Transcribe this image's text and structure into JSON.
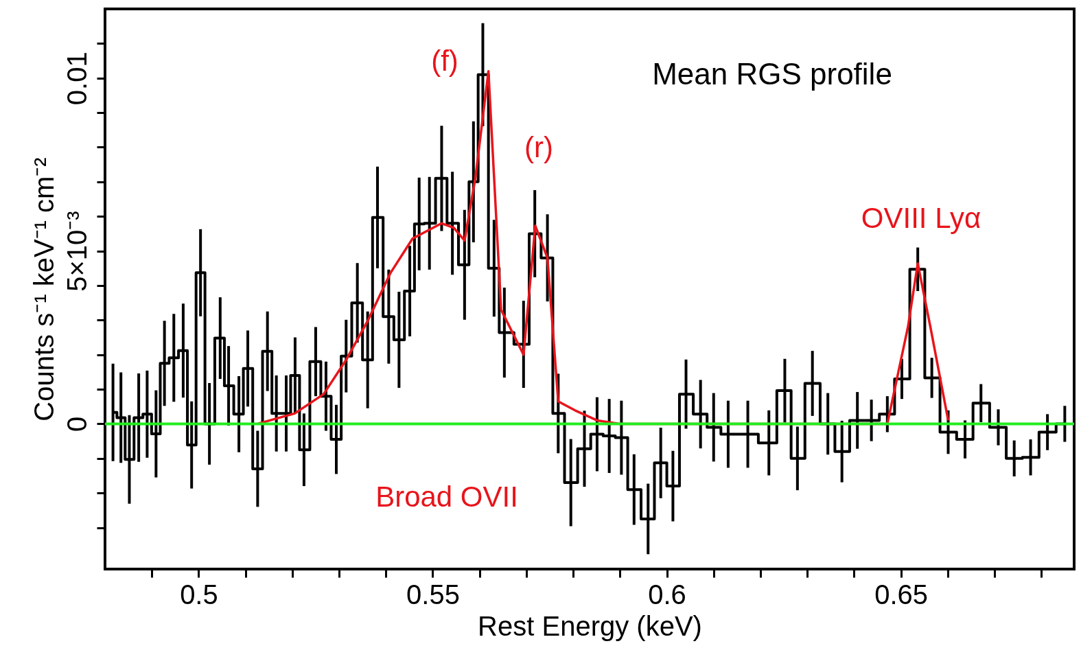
{
  "chart_data": {
    "type": "step",
    "xlabel": "Rest Energy (keV)",
    "ylabel": "Counts s⁻¹ keV⁻¹ cm⁻²",
    "xlim": [
      0.48,
      0.687
    ],
    "ylim": [
      -0.0042,
      0.012
    ],
    "xticks": [
      {
        "value": 0.49,
        "label": null
      },
      0.5,
      {
        "value": 0.51,
        "label": null
      },
      {
        "value": 0.52,
        "label": null
      },
      {
        "value": 0.53,
        "label": null
      },
      {
        "value": 0.54,
        "label": null
      },
      0.55,
      {
        "value": 0.56,
        "label": null
      },
      {
        "value": 0.57,
        "label": null
      },
      {
        "value": 0.58,
        "label": null
      },
      {
        "value": 0.59,
        "label": null
      },
      0.6,
      {
        "value": 0.61,
        "label": null
      },
      {
        "value": 0.62,
        "label": null
      },
      {
        "value": 0.63,
        "label": null
      },
      {
        "value": 0.64,
        "label": null
      },
      0.65,
      {
        "value": 0.66,
        "label": null
      },
      {
        "value": 0.67,
        "label": null
      },
      {
        "value": 0.68,
        "label": null
      }
    ],
    "yticks": [
      {
        "value": -0.003,
        "label": null
      },
      {
        "value": -0.002,
        "label": null
      },
      {
        "value": -0.001,
        "label": null
      },
      0,
      {
        "value": 0.001,
        "label": null
      },
      {
        "value": 0.002,
        "label": null
      },
      {
        "value": 0.003,
        "label": null
      },
      {
        "value": 0.004,
        "label": null
      },
      {
        "value": 0.005,
        "label": "5×10⁻³"
      },
      {
        "value": 0.006,
        "label": null
      },
      {
        "value": 0.007,
        "label": null
      },
      {
        "value": 0.008,
        "label": null
      },
      {
        "value": 0.009,
        "label": null
      },
      0.01,
      {
        "value": 0.011,
        "label": null
      }
    ],
    "marker": "none",
    "line_style": "solid",
    "series": [
      {
        "color": "#000000",
        "x": [
          0.4817,
          0.4834,
          0.4852,
          0.4872,
          0.489,
          0.4909,
          0.4927,
          0.4947,
          0.4967,
          0.4985,
          0.5004,
          0.5023,
          0.5046,
          0.5064,
          0.5086,
          0.5105,
          0.5126,
          0.5147,
          0.5166,
          0.5187,
          0.5206,
          0.5225,
          0.525,
          0.5272,
          0.5294,
          0.5315,
          0.5339,
          0.5361,
          0.5382,
          0.5406,
          0.5428,
          0.5451,
          0.5471,
          0.5493,
          0.5519,
          0.5542,
          0.5568,
          0.5587,
          0.5607,
          0.5631,
          0.5653,
          0.5694,
          0.5718,
          0.5745,
          0.5768,
          0.5795,
          0.5824,
          0.5851,
          0.5877,
          0.5903,
          0.593,
          0.596,
          0.5987,
          0.6013,
          0.6041,
          0.6072,
          0.61,
          0.6131,
          0.6173,
          0.6218,
          0.6252,
          0.6279,
          0.6311,
          0.6344,
          0.6374,
          0.6407,
          0.6437,
          0.6471,
          0.6502,
          0.6536,
          0.6566,
          0.6601,
          0.6637,
          0.6671,
          0.6708,
          0.6742,
          0.6777,
          0.6813,
          0.685
        ],
        "values": [
          0.00033,
          0.00018,
          -0.00103,
          0.00018,
          0.00028,
          -0.00029,
          0.00175,
          0.00191,
          0.00212,
          -0.00061,
          0.00437,
          0.0,
          0.00248,
          0.0011,
          0.00028,
          0.0016,
          -0.0013,
          0.0021,
          0.0003,
          0.0003,
          0.0014,
          -0.00075,
          0.0018,
          0.0008,
          -0.00045,
          0.00196,
          0.0035,
          0.00185,
          0.00597,
          0.0031,
          0.00243,
          0.00384,
          0.00578,
          0.0058,
          0.0071,
          0.0058,
          0.0046,
          0.007,
          0.0101,
          0.0045,
          0.00264,
          0.0023,
          0.0055,
          0.0048,
          0.0003,
          -0.0017,
          -0.00072,
          -0.0003,
          -0.00035,
          -0.0004,
          -0.0019,
          -0.00275,
          -0.00113,
          -0.0018,
          0.00086,
          0.00028,
          -0.0001,
          -0.0003,
          -0.0003,
          -0.00055,
          0.00096,
          -0.001,
          0.00117,
          0.0,
          -0.0008,
          0.0001,
          0.0001,
          0.00028,
          0.0013,
          0.00447,
          0.00133,
          -0.00024,
          -0.00045,
          0.0006,
          -0.0001,
          -0.001,
          -0.00097,
          -0.00024,
          0.0
        ],
        "errors": [
          0.00141,
          0.00131,
          0.00128,
          0.00128,
          0.00126,
          0.00126,
          0.00123,
          0.00127,
          0.00136,
          0.00126,
          0.00126,
          0.00118,
          0.00118,
          0.00115,
          0.0011,
          0.0011,
          0.0011,
          0.00115,
          0.0011,
          0.0011,
          0.0011,
          0.00105,
          0.001,
          0.001,
          0.001,
          0.00105,
          0.00115,
          0.0014,
          0.00147,
          0.00136,
          0.00139,
          0.00131,
          0.00134,
          0.00134,
          0.00152,
          0.00149,
          0.00159,
          0.00175,
          0.00149,
          0.0014,
          0.0013,
          0.00126,
          0.00126,
          0.00126,
          0.00115,
          0.00126,
          0.0011,
          0.00107,
          0.00107,
          0.00107,
          0.00102,
          0.00102,
          0.00102,
          0.00102,
          0.001,
          0.00099,
          0.00099,
          0.00097,
          0.00097,
          0.00094,
          0.00092,
          0.00092,
          0.00094,
          0.00089,
          0.00089,
          0.00082,
          0.0006,
          0.00052,
          0.00058,
          0.00063,
          0.00058,
          0.00063,
          0.00055,
          0.00055,
          0.00052,
          0.00052,
          0.00052,
          0.00052,
          0.00052
        ]
      },
      {
        "type": "line",
        "color": "#e8141b",
        "x": [
          0.5126,
          0.5165,
          0.5205,
          0.5267,
          0.5315,
          0.5362,
          0.541,
          0.5457,
          0.5519,
          0.5545,
          0.5568,
          0.5591,
          0.5619,
          0.5646,
          0.5694,
          0.5719,
          0.5745,
          0.5768,
          0.5804,
          0.5851,
          0.5899,
          0.6471,
          0.6515,
          0.6536,
          0.6563,
          0.6601
        ],
        "values": [
          0.0,
          0.00015,
          0.0003,
          0.00086,
          0.00185,
          0.003,
          0.00437,
          0.00536,
          0.0058,
          0.00567,
          0.0053,
          0.0071,
          0.0102,
          0.0033,
          0.002,
          0.00573,
          0.0048,
          0.00065,
          0.00039,
          0.0001,
          0.0,
          0.0,
          0.0028,
          0.00464,
          0.0028,
          0.0001
        ]
      }
    ],
    "ref_lines": [
      {
        "axis": "y",
        "value": 0,
        "color": "#22ee22"
      }
    ],
    "annotations": [
      "Mean RGS profile",
      "(f)",
      "(r)",
      "OVIII Lyα",
      "Broad OVII"
    ]
  }
}
